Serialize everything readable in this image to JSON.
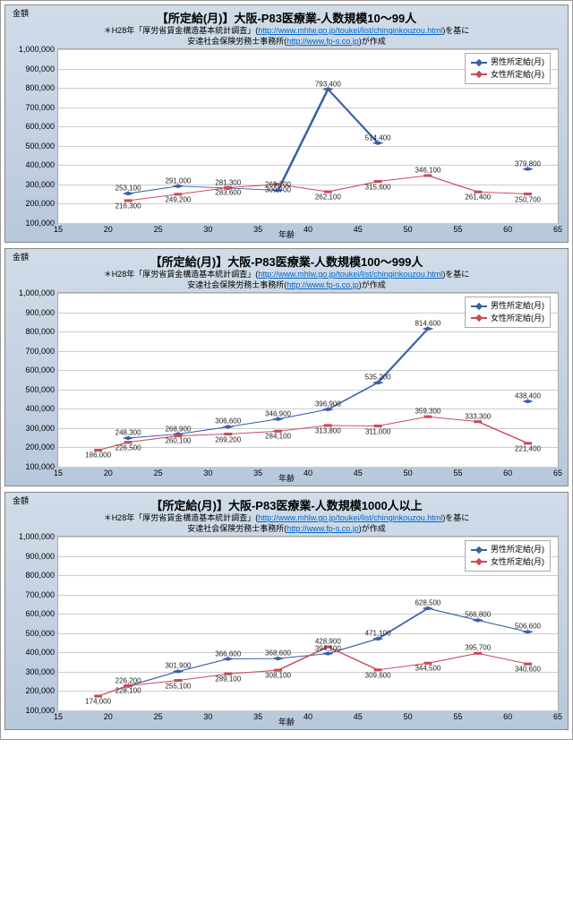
{
  "charts": [
    {
      "title": "【所定給(月)】大阪-P83医療業-人数規模10～99人",
      "note1": "＊H28年「厚労省賃金構造基本統計調査」(",
      "link": "http://www.mhlw.go.jp/toukei/list/chinginkouzou.html",
      "note2": ")を基に",
      "note3": "安達社会保険労務士事務所(",
      "link2": "http://www.fp-s.co.jp",
      "note4": ")が作成",
      "ylabel": "金額",
      "xlabel": "年齢",
      "xlim": [
        15,
        65
      ],
      "xtick_step": 5,
      "ylim": [
        100000,
        1000000
      ],
      "ytick_step": 100000,
      "legend": [
        {
          "label": "男性所定給(月)",
          "color": "#3b5fa8"
        },
        {
          "label": "女性所定給(月)",
          "color": "#c94a5a"
        }
      ],
      "series": [
        {
          "name": "男性所定給(月)",
          "color": "#3b5fa8",
          "marker": "diamond",
          "x": [
            22,
            27,
            32,
            37,
            42,
            47,
            52,
            57,
            62
          ],
          "y": [
            253100,
            291000,
            281300,
            269700,
            793400,
            514400,
            null,
            null,
            379800
          ],
          "labels": [
            253100,
            291000,
            281300,
            269700,
            793400,
            514400,
            null,
            null,
            379800
          ],
          "labelpos": [
            "above",
            "above",
            "above",
            "above",
            "above",
            "above",
            null,
            null,
            "above"
          ]
        },
        {
          "name": "女性所定給(月)",
          "color": "#c94a5a",
          "marker": "square",
          "x": [
            22,
            27,
            32,
            37,
            42,
            47,
            52,
            57,
            62
          ],
          "y": [
            216300,
            249200,
            283600,
            300700,
            262100,
            315600,
            346100,
            261400,
            250700
          ],
          "labels": [
            216300,
            249200,
            283600,
            300700,
            262100,
            315600,
            346100,
            261400,
            250700
          ],
          "labelpos": [
            "below",
            "below",
            "below",
            "below",
            "below",
            "below",
            "above",
            "below",
            "below"
          ]
        }
      ]
    },
    {
      "title": "【所定給(月)】大阪-P83医療業-人数規模100～999人",
      "note1": "＊H28年「厚労省賃金構造基本統計調査」(",
      "link": "http://www.mhlw.go.jp/toukei/list/chinginkouzou.html",
      "note2": ")を基に",
      "note3": "安達社会保険労務士事務所(",
      "link2": "http://www.fp-s.co.jp",
      "note4": ")が作成",
      "ylabel": "金額",
      "xlabel": "年齢",
      "xlim": [
        15,
        65
      ],
      "xtick_step": 5,
      "ylim": [
        100000,
        1000000
      ],
      "ytick_step": 100000,
      "legend": [
        {
          "label": "男性所定給(月)",
          "color": "#3b5fa8"
        },
        {
          "label": "女性所定給(月)",
          "color": "#c94a5a"
        }
      ],
      "series": [
        {
          "name": "男性所定給(月)",
          "color": "#3b5fa8",
          "marker": "diamond",
          "x": [
            22,
            27,
            32,
            37,
            42,
            47,
            52,
            57,
            62
          ],
          "y": [
            248300,
            268900,
            306600,
            346900,
            396900,
            535200,
            814600,
            null,
            438400
          ],
          "labels": [
            248300,
            268900,
            306600,
            346900,
            396900,
            535200,
            814600,
            null,
            438400
          ],
          "labelpos": [
            "above",
            "above",
            "above",
            "above",
            "above",
            "above",
            "above",
            null,
            "above"
          ]
        },
        {
          "name": "女性所定給(月)",
          "color": "#c94a5a",
          "marker": "square",
          "x": [
            19,
            22,
            27,
            32,
            37,
            42,
            47,
            52,
            57,
            62
          ],
          "y": [
            186000,
            226500,
            260100,
            269200,
            284100,
            313800,
            311000,
            359300,
            333300,
            221400
          ],
          "labels": [
            186000,
            226500,
            260100,
            269200,
            284100,
            313800,
            311000,
            359300,
            333300,
            221400
          ],
          "labelpos": [
            "below",
            "below",
            "below",
            "below",
            "below",
            "below",
            "below",
            "above",
            "above",
            "below"
          ]
        }
      ]
    },
    {
      "title": "【所定給(月)】大阪-P83医療業-人数規模1000人以上",
      "note1": "＊H28年「厚労省賃金構造基本統計調査」(",
      "link": "http://www.mhlw.go.jp/toukei/list/chinginkouzou.html",
      "note2": ")を基に",
      "note3": "安達社会保険労務士事務所(",
      "link2": "http://www.fp-s.co.jp",
      "note4": ")が作成",
      "ylabel": "金額",
      "xlabel": "年齢",
      "xlim": [
        15,
        65
      ],
      "xtick_step": 5,
      "ylim": [
        100000,
        1000000
      ],
      "ytick_step": 100000,
      "legend": [
        {
          "label": "男性所定給(月)",
          "color": "#3b5fa8"
        },
        {
          "label": "女性所定給(月)",
          "color": "#c94a5a"
        }
      ],
      "series": [
        {
          "name": "男性所定給(月)",
          "color": "#3b5fa8",
          "marker": "diamond",
          "x": [
            22,
            27,
            32,
            37,
            42,
            47,
            52,
            57,
            62
          ],
          "y": [
            226200,
            301900,
            366600,
            368600,
            394100,
            471100,
            628500,
            566800,
            506600
          ],
          "labels": [
            226200,
            301900,
            366600,
            368600,
            394100,
            471100,
            628500,
            566800,
            506600
          ],
          "labelpos": [
            "above",
            "above",
            "above",
            "above",
            "above",
            "above",
            "above",
            "above",
            "above"
          ]
        },
        {
          "name": "女性所定給(月)",
          "color": "#c94a5a",
          "marker": "square",
          "x": [
            19,
            22,
            27,
            32,
            37,
            42,
            47,
            52,
            57,
            62
          ],
          "y": [
            174000,
            228100,
            255100,
            289100,
            308100,
            428900,
            309600,
            344500,
            395700,
            340600
          ],
          "labels": [
            174000,
            228100,
            255100,
            289100,
            308100,
            428900,
            309600,
            344500,
            395700,
            340600
          ],
          "labelpos": [
            "below",
            "below",
            "below",
            "below",
            "below",
            "above",
            "below",
            "below",
            "above",
            "below"
          ]
        }
      ]
    }
  ]
}
